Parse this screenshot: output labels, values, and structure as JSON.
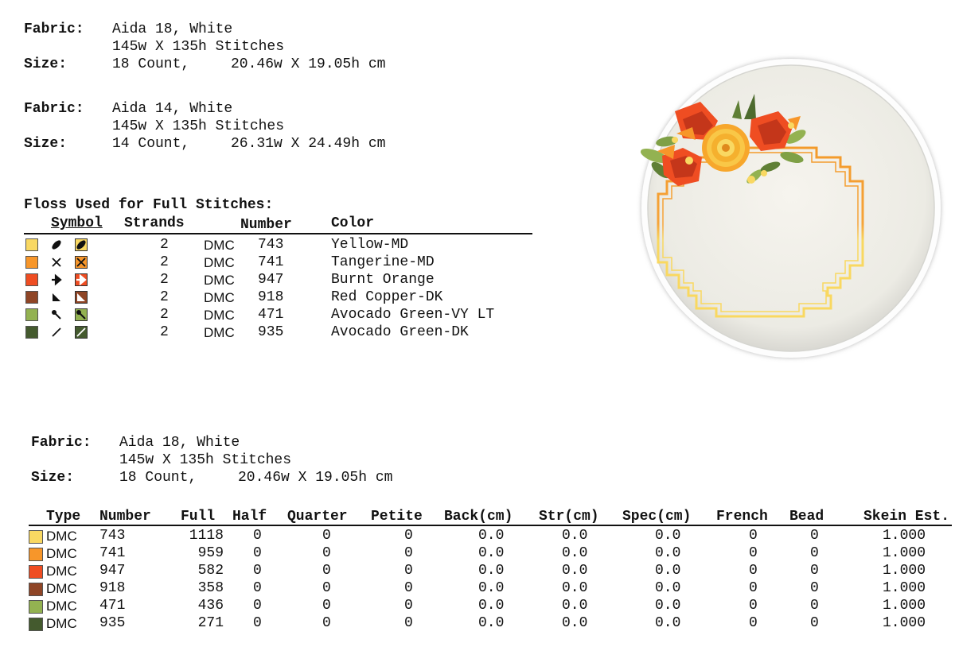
{
  "info_blocks": [
    {
      "fabric_label": "Fabric:",
      "fabric": "Aida 18, White",
      "stitches": "145w X 135h Stitches",
      "size_label": "Size:",
      "count": "18 Count,",
      "dims": "20.46w X 19.05h cm"
    },
    {
      "fabric_label": "Fabric:",
      "fabric": "Aida 14, White",
      "stitches": "145w X 135h Stitches",
      "size_label": "Size:",
      "count": "14 Count,",
      "dims": "26.31w X 24.49h cm"
    },
    {
      "fabric_label": "Fabric:",
      "fabric": "Aida 18, White",
      "stitches": "145w X 135h Stitches",
      "size_label": "Size:",
      "count": "18 Count,",
      "dims": "20.46w X 19.05h cm"
    }
  ],
  "floss": {
    "title": "Floss Used for Full Stitches:",
    "headers": {
      "symbol": "Symbol",
      "strands": "Strands",
      "number": "Number",
      "color": "Color"
    },
    "rows": [
      {
        "color_hex": "#f9d862",
        "symbol": "oval-icon",
        "strands": "2",
        "brand": "DMC",
        "number": "743",
        "color": "Yellow-MD"
      },
      {
        "color_hex": "#f7962a",
        "symbol": "x-icon",
        "strands": "2",
        "brand": "DMC",
        "number": "741",
        "color": "Tangerine-MD"
      },
      {
        "color_hex": "#ef4d22",
        "symbol": "arrow-icon",
        "strands": "2",
        "brand": "DMC",
        "number": "947",
        "color": "Burnt Orange"
      },
      {
        "color_hex": "#8f4526",
        "symbol": "triangle-icon",
        "strands": "2",
        "brand": "DMC",
        "number": "918",
        "color": "Red Copper-DK"
      },
      {
        "color_hex": "#93b251",
        "symbol": "pin-icon",
        "strands": "2",
        "brand": "DMC",
        "number": "471",
        "color": "Avocado Green-VY LT"
      },
      {
        "color_hex": "#445a2e",
        "symbol": "slash-icon",
        "strands": "2",
        "brand": "DMC",
        "number": "935",
        "color": "Avocado Green-DK"
      }
    ]
  },
  "usage": {
    "headers": [
      "Type",
      "Number",
      "Full",
      "Half",
      "Quarter",
      "Petite",
      "Back(cm)",
      "Str(cm)",
      "Spec(cm)",
      "French",
      "Bead",
      "Skein Est."
    ],
    "rows": [
      {
        "color_hex": "#f9d862",
        "type": "DMC",
        "number": "743",
        "full": "1118",
        "half": "0",
        "quarter": "0",
        "petite": "0",
        "back": "0.0",
        "str": "0.0",
        "spec": "0.0",
        "french": "0",
        "bead": "0",
        "skein": "1.000"
      },
      {
        "color_hex": "#f7962a",
        "type": "DMC",
        "number": "741",
        "full": "959",
        "half": "0",
        "quarter": "0",
        "petite": "0",
        "back": "0.0",
        "str": "0.0",
        "spec": "0.0",
        "french": "0",
        "bead": "0",
        "skein": "1.000"
      },
      {
        "color_hex": "#ef4d22",
        "type": "DMC",
        "number": "947",
        "full": "582",
        "half": "0",
        "quarter": "0",
        "petite": "0",
        "back": "0.0",
        "str": "0.0",
        "spec": "0.0",
        "french": "0",
        "bead": "0",
        "skein": "1.000"
      },
      {
        "color_hex": "#8f4526",
        "type": "DMC",
        "number": "918",
        "full": "358",
        "half": "0",
        "quarter": "0",
        "petite": "0",
        "back": "0.0",
        "str": "0.0",
        "spec": "0.0",
        "french": "0",
        "bead": "0",
        "skein": "1.000"
      },
      {
        "color_hex": "#93b251",
        "type": "DMC",
        "number": "471",
        "full": "436",
        "half": "0",
        "quarter": "0",
        "petite": "0",
        "back": "0.0",
        "str": "0.0",
        "spec": "0.0",
        "french": "0",
        "bead": "0",
        "skein": "1.000"
      },
      {
        "color_hex": "#445a2e",
        "type": "DMC",
        "number": "935",
        "full": "271",
        "half": "0",
        "quarter": "0",
        "petite": "0",
        "back": "0.0",
        "str": "0.0",
        "spec": "0.0",
        "french": "0",
        "bead": "0",
        "skein": "1.000"
      }
    ]
  },
  "preview": {
    "image": "embroidery-hoop-preview"
  }
}
